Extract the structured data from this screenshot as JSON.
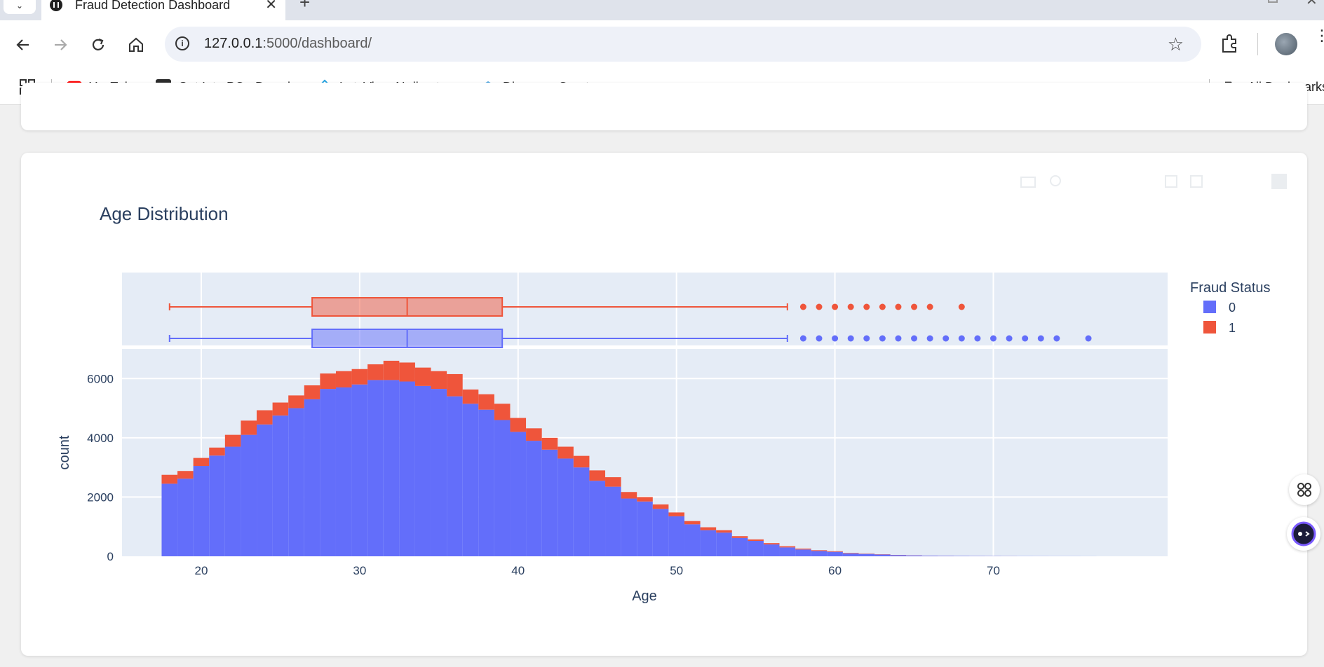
{
  "browser": {
    "tab_title": "Fraud Detection Dashboard",
    "url_host": "127.0.0.1",
    "url_path": ":5000/dashboard/",
    "bookmarks": [
      {
        "label": "YouTube",
        "icon": "youtube-icon"
      },
      {
        "label": "Get Into PC - Downl...",
        "icon": "getintopc-icon"
      },
      {
        "label": "LetsView AI director...",
        "icon": "letsview-icon"
      },
      {
        "label": "Discover, Create, an...",
        "icon": "discover-icon"
      }
    ],
    "all_bookmarks_label": "All Bookmarks"
  },
  "chart_data": {
    "type": "bar",
    "title": "Age Distribution",
    "xlabel": "Age",
    "ylabel": "count",
    "legend_title": "Fraud Status",
    "legend_position": "top-right",
    "grid": true,
    "xlim": [
      15,
      81
    ],
    "ylim": [
      0,
      7000
    ],
    "x_ticks": [
      20,
      30,
      40,
      50,
      60,
      70
    ],
    "y_ticks": [
      0,
      2000,
      4000,
      6000
    ],
    "bin_width": 1,
    "x_start": 18,
    "barmode": "stack",
    "series": [
      {
        "name": "0",
        "color": "#636efa",
        "values": [
          2450,
          2620,
          3050,
          3400,
          3700,
          4100,
          4450,
          4750,
          5000,
          5300,
          5650,
          5700,
          5800,
          5950,
          5950,
          5900,
          5750,
          5650,
          5400,
          5150,
          4950,
          4600,
          4200,
          3900,
          3600,
          3300,
          3000,
          2550,
          2350,
          1950,
          1850,
          1600,
          1350,
          1080,
          880,
          800,
          620,
          520,
          400,
          300,
          230,
          180,
          150,
          100,
          80,
          60,
          40,
          30,
          20,
          15,
          12,
          10,
          8,
          6,
          5,
          4,
          3,
          3,
          2
        ]
      },
      {
        "name": "1",
        "color": "#ef553b",
        "values": [
          300,
          260,
          270,
          270,
          400,
          480,
          480,
          440,
          430,
          470,
          520,
          550,
          520,
          530,
          650,
          640,
          620,
          600,
          750,
          480,
          520,
          550,
          470,
          420,
          400,
          400,
          390,
          350,
          320,
          220,
          150,
          150,
          130,
          110,
          100,
          80,
          60,
          50,
          45,
          40,
          30,
          25,
          20,
          15,
          10,
          8,
          6,
          4,
          2,
          2,
          1,
          1,
          1,
          1,
          0,
          0,
          0,
          0,
          0
        ]
      }
    ],
    "box": [
      {
        "name": "1",
        "color": "#ef553b",
        "min": 18,
        "q1": 27,
        "median": 33,
        "q3": 39,
        "max": 57,
        "outliers": [
          58,
          59,
          60,
          61,
          62,
          63,
          64,
          65,
          66,
          68
        ]
      },
      {
        "name": "0",
        "color": "#636efa",
        "min": 18,
        "q1": 27,
        "median": 33,
        "q3": 39,
        "max": 57,
        "outliers": [
          58,
          59,
          60,
          61,
          62,
          63,
          64,
          65,
          66,
          67,
          68,
          69,
          70,
          71,
          72,
          73,
          74,
          76
        ]
      }
    ]
  }
}
